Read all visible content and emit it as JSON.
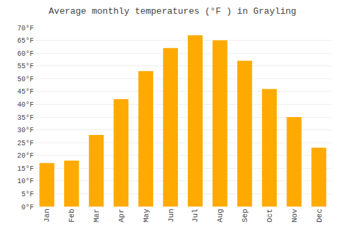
{
  "chart_data": {
    "type": "bar",
    "title": "Average monthly temperatures (°F ) in Grayling",
    "categories": [
      "Jan",
      "Feb",
      "Mar",
      "Apr",
      "May",
      "Jun",
      "Jul",
      "Aug",
      "Sep",
      "Oct",
      "Nov",
      "Dec"
    ],
    "values": [
      17,
      18,
      28,
      42,
      53,
      62,
      67,
      65,
      57,
      46,
      35,
      23
    ],
    "color": "#FFAA00",
    "ylim": [
      0,
      70
    ],
    "yticks": [
      {
        "value": 0,
        "label": "0°F"
      },
      {
        "value": 5,
        "label": "5°F"
      },
      {
        "value": 10,
        "label": "10°F"
      },
      {
        "value": 15,
        "label": "15°F"
      },
      {
        "value": 20,
        "label": "20°F"
      },
      {
        "value": 25,
        "label": "25°F"
      },
      {
        "value": 30,
        "label": "30°F"
      },
      {
        "value": 35,
        "label": "35°F"
      },
      {
        "value": 40,
        "label": "40°F"
      },
      {
        "value": 45,
        "label": "45°F"
      },
      {
        "value": 50,
        "label": "50°F"
      },
      {
        "value": 55,
        "label": "55°F"
      },
      {
        "value": 60,
        "label": "60°F"
      },
      {
        "value": 65,
        "label": "65°F"
      },
      {
        "value": 70,
        "label": "70°F"
      }
    ],
    "grid": true
  }
}
